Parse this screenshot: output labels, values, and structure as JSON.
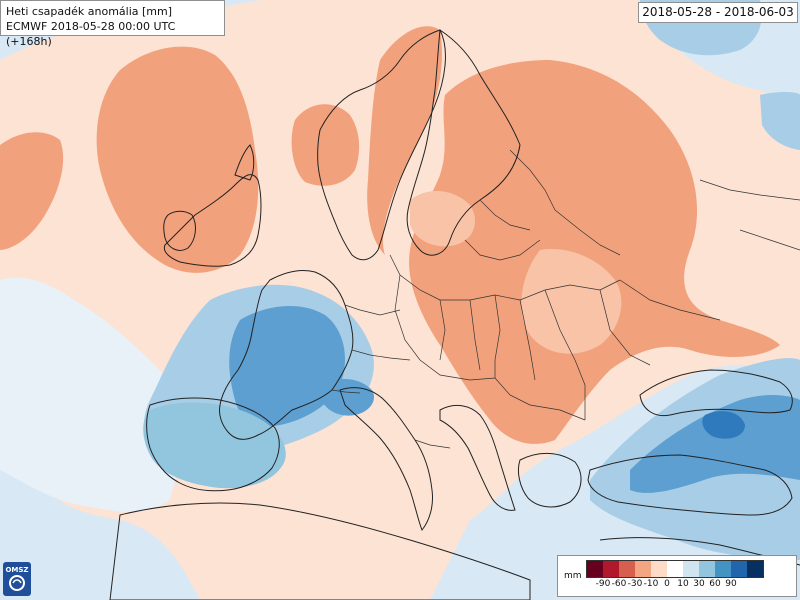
{
  "header": {
    "title": "Heti csapadék anomália [mm]",
    "subtitle": "ECMWF 2018-05-28 00:00 UTC (+168h)",
    "date_range": "2018-05-28 - 2018-06-03"
  },
  "logo": {
    "text": "OMSZ",
    "icon": "omsz-logo-icon"
  },
  "legend": {
    "unit": "mm",
    "ticks": [
      "-90",
      "-60",
      "-30",
      "-10",
      "0",
      "10",
      "30",
      "60",
      "90"
    ],
    "colors": [
      "#67001f",
      "#b2182b",
      "#d6604d",
      "#f4a582",
      "#fddbc7",
      "#ffffff",
      "#d1e5f0",
      "#92c5de",
      "#4393c3",
      "#2166ac",
      "#053061"
    ]
  },
  "map_colors": {
    "sea_light": "#d8e8f4",
    "land_very_light_red": "#fde3d4",
    "light_red": "#f8c3a6",
    "medium_red": "#f2a17d",
    "light_blue": "#a8cde6",
    "medium_blue": "#5c9fd0",
    "dark_blue": "#2f79bd",
    "border": "#222222"
  }
}
